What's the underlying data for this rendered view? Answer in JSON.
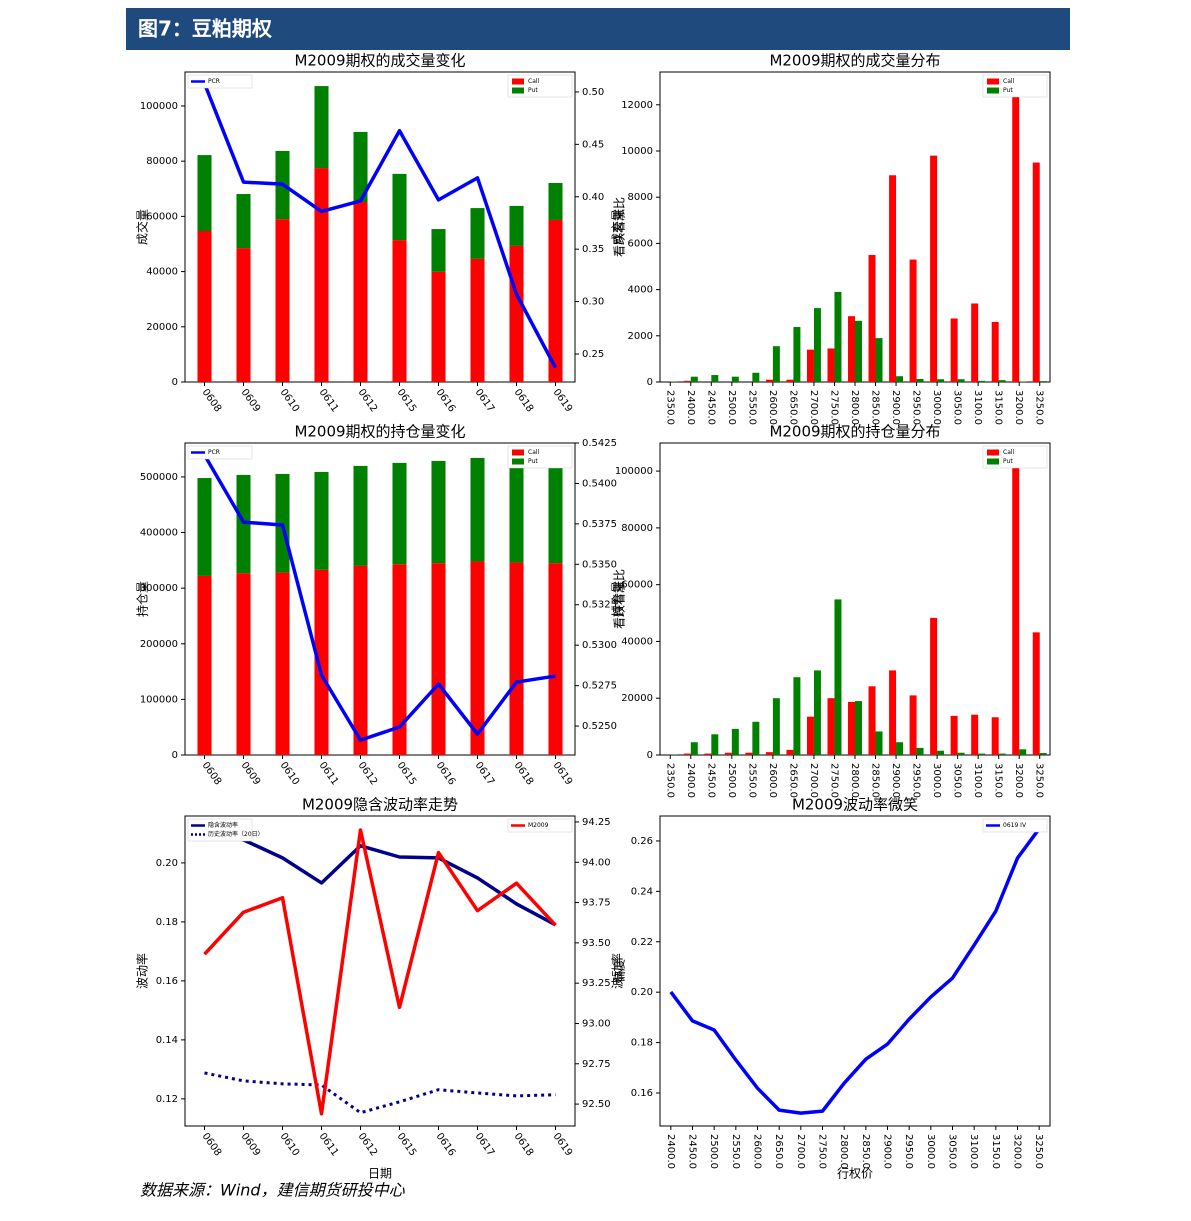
{
  "header": {
    "title": "图7：豆粕期权"
  },
  "footer": {
    "source": "数据来源：Wind，建信期货研投中心"
  },
  "chart_data": [
    {
      "type": "bar",
      "stacked": true,
      "title": "M2009期权的成交量变化",
      "y_label": "成交量",
      "y2_label": "看跌看涨比",
      "categories": [
        "0608",
        "0609",
        "0610",
        "0611",
        "0612",
        "0615",
        "0616",
        "0617",
        "0618",
        "0619"
      ],
      "series": [
        {
          "name": "Call",
          "color": "#ff0000",
          "values": [
            54700,
            48500,
            59000,
            77500,
            65200,
            51400,
            39900,
            44600,
            49300,
            58700
          ]
        },
        {
          "name": "Put",
          "color": "#008000",
          "values": [
            27500,
            19600,
            24700,
            29700,
            25400,
            24000,
            15500,
            18400,
            14500,
            13400
          ]
        },
        {
          "name": "PCR",
          "type": "line",
          "axis": "y2",
          "color": "#0000ff",
          "values": [
            0.508,
            0.414,
            0.412,
            0.386,
            0.396,
            0.463,
            0.397,
            0.418,
            0.307,
            0.237
          ]
        }
      ],
      "ylim": [
        0,
        112300
      ],
      "yticks": [
        0,
        20000,
        40000,
        60000,
        80000,
        100000
      ],
      "y2lim": [
        0.2233,
        0.519
      ],
      "y2ticks": [
        0.25,
        {
          "value": 0.3,
          "label": "0.30"
        },
        0.35,
        {
          "value": 0.4,
          "label": "0.40"
        },
        0.45,
        {
          "value": 0.5,
          "label": "0.50"
        }
      ],
      "legend": {
        "y": "upper right",
        "y2": "upper left"
      }
    },
    {
      "type": "bar",
      "stacked": false,
      "title": "M2009期权的成交量分布",
      "y_label": "成交量",
      "categories": [
        "2350.0",
        "2400.0",
        "2450.0",
        "2500.0",
        "2550.0",
        "2600.0",
        "2650.0",
        "2700.0",
        "2750.0",
        "2800.0",
        "2850.0",
        "2900.0",
        "2950.0",
        "3000.0",
        "3050.0",
        "3100.0",
        "3150.0",
        "3200.0",
        "3250.0"
      ],
      "series": [
        {
          "name": "Call",
          "color": "#ff0000",
          "values": [
            0,
            50,
            0,
            0,
            0,
            100,
            100,
            1400,
            1450,
            2850,
            5500,
            8950,
            5300,
            9800,
            2750,
            3400,
            2600,
            12850,
            9500
          ]
        },
        {
          "name": "Put",
          "color": "#008000",
          "values": [
            20,
            230,
            300,
            230,
            400,
            1550,
            2380,
            3200,
            3900,
            2650,
            1900,
            250,
            130,
            120,
            120,
            50,
            80,
            20,
            40
          ]
        }
      ],
      "ylim": [
        0,
        13420
      ],
      "yticks": [
        0,
        2000,
        4000,
        6000,
        8000,
        10000,
        12000
      ],
      "legend": {
        "y": "upper right"
      }
    },
    {
      "type": "bar",
      "stacked": true,
      "title": "M2009期权的持仓量变化",
      "y_label": "持仓量",
      "y2_label": "看跌看涨比",
      "categories": [
        "0608",
        "0609",
        "0610",
        "0611",
        "0612",
        "0615",
        "0616",
        "0617",
        "0618",
        "0619"
      ],
      "series": [
        {
          "name": "Call",
          "color": "#ff0000",
          "values": [
            322000,
            327000,
            328000,
            333000,
            340000,
            343000,
            345000,
            348000,
            346000,
            345000
          ]
        },
        {
          "name": "Put",
          "color": "#008000",
          "values": [
            176000,
            176600,
            177400,
            176000,
            179800,
            182200,
            183800,
            186200,
            184600,
            191000
          ]
        },
        {
          "name": "PCR",
          "type": "line",
          "axis": "y2",
          "color": "#0000ff",
          "values": [
            0.54176,
            0.53761,
            0.53743,
            0.52815,
            0.52413,
            0.52494,
            0.5276,
            0.5245,
            0.52772,
            0.52809
          ]
        }
      ],
      "ylim": [
        0,
        561000
      ],
      "yticks": [
        0,
        100000,
        200000,
        300000,
        400000,
        500000
      ],
      "y2lim": [
        0.52321,
        0.5425
      ],
      "y2ticks": [
        {
          "value": 0.525,
          "label": "0.5250"
        },
        0.5275,
        {
          "value": 0.53,
          "label": "0.5300"
        },
        0.5325,
        {
          "value": 0.535,
          "label": "0.5350"
        },
        0.5375,
        {
          "value": 0.54,
          "label": "0.5400"
        },
        0.5425
      ],
      "legend": {
        "y": "upper right",
        "y2": "upper left"
      }
    },
    {
      "type": "bar",
      "stacked": false,
      "title": "M2009期权的持仓量分布",
      "y_label": "持仓量",
      "categories": [
        "2350.0",
        "2400.0",
        "2450.0",
        "2500.0",
        "2550.0",
        "2600.0",
        "2650.0",
        "2700.0",
        "2750.0",
        "2800.0",
        "2850.0",
        "2900.0",
        "2950.0",
        "3000.0",
        "3050.0",
        "3100.0",
        "3150.0",
        "3200.0",
        "3250.0"
      ],
      "series": [
        {
          "name": "Call",
          "color": "#ff0000",
          "values": [
            0,
            500,
            500,
            800,
            800,
            1000,
            1800,
            13500,
            20000,
            18700,
            24200,
            29800,
            21000,
            48300,
            13800,
            14200,
            13300,
            103800,
            43200
          ]
        },
        {
          "name": "Put",
          "color": "#008000",
          "values": [
            100,
            4500,
            7300,
            9200,
            11700,
            20000,
            27400,
            29800,
            54800,
            19000,
            8300,
            4500,
            2500,
            1500,
            800,
            500,
            500,
            2000,
            700
          ]
        }
      ],
      "ylim": [
        0,
        109900
      ],
      "yticks": [
        0,
        20000,
        40000,
        60000,
        80000,
        100000
      ],
      "legend": {
        "y": "upper right"
      }
    },
    {
      "type": "line",
      "title": "M2009隐含波动率走势",
      "x_label": "日期",
      "y_label": "波动率",
      "y2_label": "偏度",
      "categories": [
        "0608",
        "0609",
        "0610",
        "0611",
        "0612",
        "0615",
        "0616",
        "0617",
        "0618",
        "0619"
      ],
      "series": [
        {
          "name": "隐含波动率",
          "color": "#00008b",
          "values": [
            0.2112,
            0.2078,
            0.2017,
            0.1932,
            0.2058,
            0.202,
            0.2017,
            0.1949,
            0.1861,
            0.179
          ]
        },
        {
          "name": "历史波动率（20日）",
          "color": "#00008b",
          "linestyle": "dotted",
          "values": [
            0.1288,
            0.1261,
            0.1251,
            0.1247,
            0.1153,
            0.119,
            0.1231,
            0.122,
            0.121,
            0.1214
          ]
        },
        {
          "name": "M2009",
          "axis": "y2",
          "color": "#ff0000",
          "values": [
            93.43,
            93.69,
            93.78,
            92.44,
            94.2,
            93.1,
            94.06,
            93.7,
            93.87,
            93.61
          ]
        }
      ],
      "ylim": [
        0.1108,
        0.2159
      ],
      "yticks": [
        0.12,
        0.14,
        0.16,
        0.18,
        {
          "value": 0.2,
          "label": "0.20"
        }
      ],
      "y2lim": [
        92.364,
        94.287
      ],
      "y2ticks": [
        {
          "value": 92.5,
          "label": "92.50"
        },
        92.75,
        {
          "value": 93,
          "label": "93.00"
        },
        93.25,
        {
          "value": 93.5,
          "label": "93.50"
        },
        93.75,
        {
          "value": 94,
          "label": "94.00"
        },
        94.25
      ],
      "legend": {
        "y": "upper left",
        "y2": "upper right"
      }
    },
    {
      "type": "line",
      "title": "M2009波动率微笑",
      "x_label": "行权价",
      "y_label": "波动率",
      "categories": [
        "2400.0",
        "2450.0",
        "2500.0",
        "2550.0",
        "2600.0",
        "2650.0",
        "2700.0",
        "2750.0",
        "2800.0",
        "2850.0",
        "2900.0",
        "2950.0",
        "3000.0",
        "3050.0",
        "3100.0",
        "3150.0",
        "3200.0",
        "3250.0"
      ],
      "series": [
        {
          "name": "0619 IV",
          "color": "#0000ff",
          "values": [
            0.2001,
            0.1886,
            0.185,
            0.1731,
            0.1619,
            0.1532,
            0.152,
            0.1528,
            0.1639,
            0.1734,
            0.1794,
            0.1893,
            0.1981,
            0.2056,
            0.2187,
            0.2322,
            0.2532,
            0.2648
          ]
        }
      ],
      "ylim": [
        0.1469,
        0.2699
      ],
      "yticks": [
        0.16,
        0.18,
        {
          "value": 0.2,
          "label": "0.20"
        },
        0.22,
        0.24,
        0.26
      ],
      "legend": {
        "y": "upper right"
      }
    }
  ]
}
